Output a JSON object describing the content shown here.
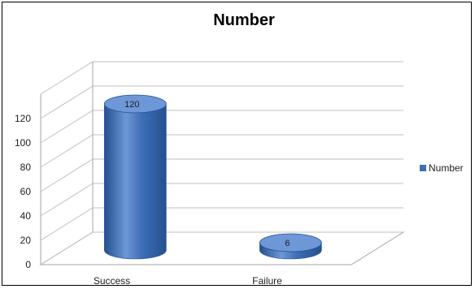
{
  "chart_data": {
    "type": "bar",
    "style": "3d-cylinder",
    "title": "Number",
    "categories": [
      "Success",
      "Failure"
    ],
    "series": [
      {
        "name": "Number",
        "values": [
          120,
          6
        ]
      }
    ],
    "data_labels": [
      "120",
      "6"
    ],
    "y_ticks": [
      "0",
      "20",
      "40",
      "60",
      "80",
      "100",
      "120"
    ],
    "ylim": [
      0,
      140
    ],
    "grid": true,
    "legend_position": "right",
    "colors": {
      "bar": "#3e6fb7",
      "bar_dark": "#24508f",
      "bar_light": "#6d97d6",
      "grid": "#bfbfbf"
    }
  }
}
